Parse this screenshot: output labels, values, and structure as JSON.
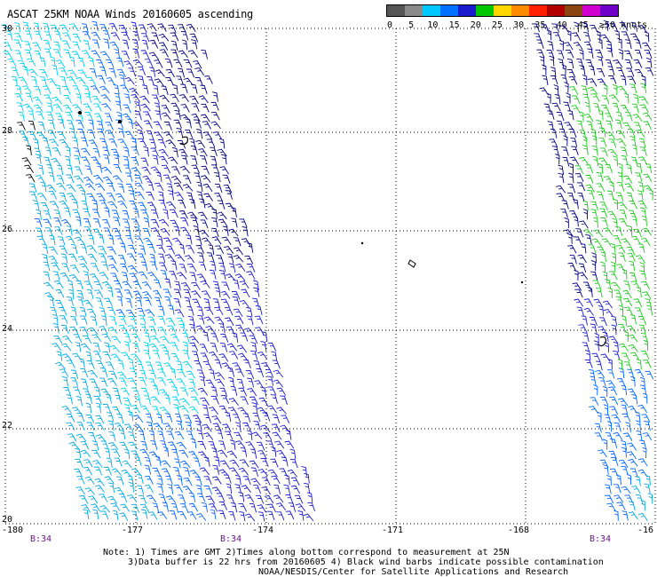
{
  "title": "ASCAT 25KM NOAA Winds 20160605 ascending",
  "legend": {
    "labels": [
      "0",
      "5",
      "10",
      "15",
      "20",
      "25",
      "30",
      "35",
      "40",
      "45",
      "≥50 knots"
    ],
    "colors": [
      "#555555",
      "#8a8a8a",
      "#00c8ff",
      "#0070ff",
      "#1a1acd",
      "#00c800",
      "#ffd700",
      "#ff8c00",
      "#ff2000",
      "#b00000",
      "#8b4513",
      "#d100d1",
      "#7000c8"
    ]
  },
  "axes": {
    "lat_labels": [
      "30",
      "28",
      "26",
      "24",
      "22",
      "20"
    ],
    "lon_labels": [
      "-180",
      "-177",
      "-174",
      "-171",
      "-168",
      "-16"
    ]
  },
  "pass_labels": [
    "B:34",
    "B:34",
    "B:34"
  ],
  "notes": {
    "line1": "Note: 1) Times are GMT 2)Times along bottom correspond to measurement at 25N",
    "line2": "3)Data buffer is 22 hrs from 20160605 4) Black wind barbs indicate possible contamination",
    "line3": "NOAA/NESDIS/Center for Satellite Applications and Research"
  },
  "colors": {
    "light_cyan": "#00d0e8",
    "cyan": "#00a8e0",
    "blue": "#0064ff",
    "dark_blue": "#1a1acd",
    "navy": "#000080",
    "green": "#1ec81e",
    "contaminated": "#000000",
    "pass_label": "#6a1a8a"
  }
}
